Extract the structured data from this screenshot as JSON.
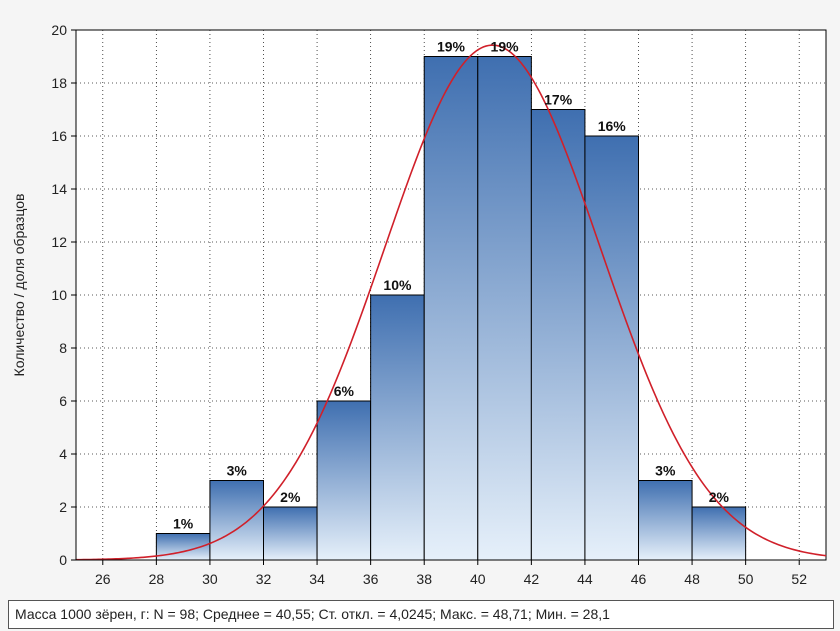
{
  "chart_data": {
    "type": "bar",
    "title": "",
    "xlabel": "",
    "ylabel": "Количество / доля образцов",
    "x_ticks": [
      26,
      28,
      30,
      32,
      34,
      36,
      38,
      40,
      42,
      44,
      46,
      48,
      50,
      52
    ],
    "y_ticks": [
      0,
      2,
      4,
      6,
      8,
      10,
      12,
      14,
      16,
      18,
      20
    ],
    "xlim": [
      25,
      53
    ],
    "ylim": [
      0,
      20
    ],
    "grid": true,
    "bins": [
      {
        "from": 28,
        "to": 30,
        "value": 1,
        "label": "1%"
      },
      {
        "from": 30,
        "to": 32,
        "value": 3,
        "label": "3%"
      },
      {
        "from": 32,
        "to": 34,
        "value": 2,
        "label": "2%"
      },
      {
        "from": 34,
        "to": 36,
        "value": 6,
        "label": "6%"
      },
      {
        "from": 36,
        "to": 38,
        "value": 10,
        "label": "10%"
      },
      {
        "from": 38,
        "to": 40,
        "value": 19,
        "label": "19%"
      },
      {
        "from": 40,
        "to": 42,
        "value": 19,
        "label": "19%"
      },
      {
        "from": 42,
        "to": 44,
        "value": 17,
        "label": "17%"
      },
      {
        "from": 44,
        "to": 46,
        "value": 16,
        "label": "16%"
      },
      {
        "from": 46,
        "to": 48,
        "value": 3,
        "label": "3%"
      },
      {
        "from": 48,
        "to": 50,
        "value": 2,
        "label": "2%"
      }
    ],
    "normal_curve": {
      "mean": 40.55,
      "sd": 4.0245,
      "n": 98,
      "bin_width": 2,
      "color": "#d0202a"
    },
    "bar_color_top": "#3f6fb0",
    "bar_color_bottom": "#e6f0fa",
    "caption": "Масса 1000 зёрен, г:   N = 98; Среднее = 40,55; Ст. откл. = 4,0245; Макс. = 48,71; Мин. = 28,1"
  }
}
